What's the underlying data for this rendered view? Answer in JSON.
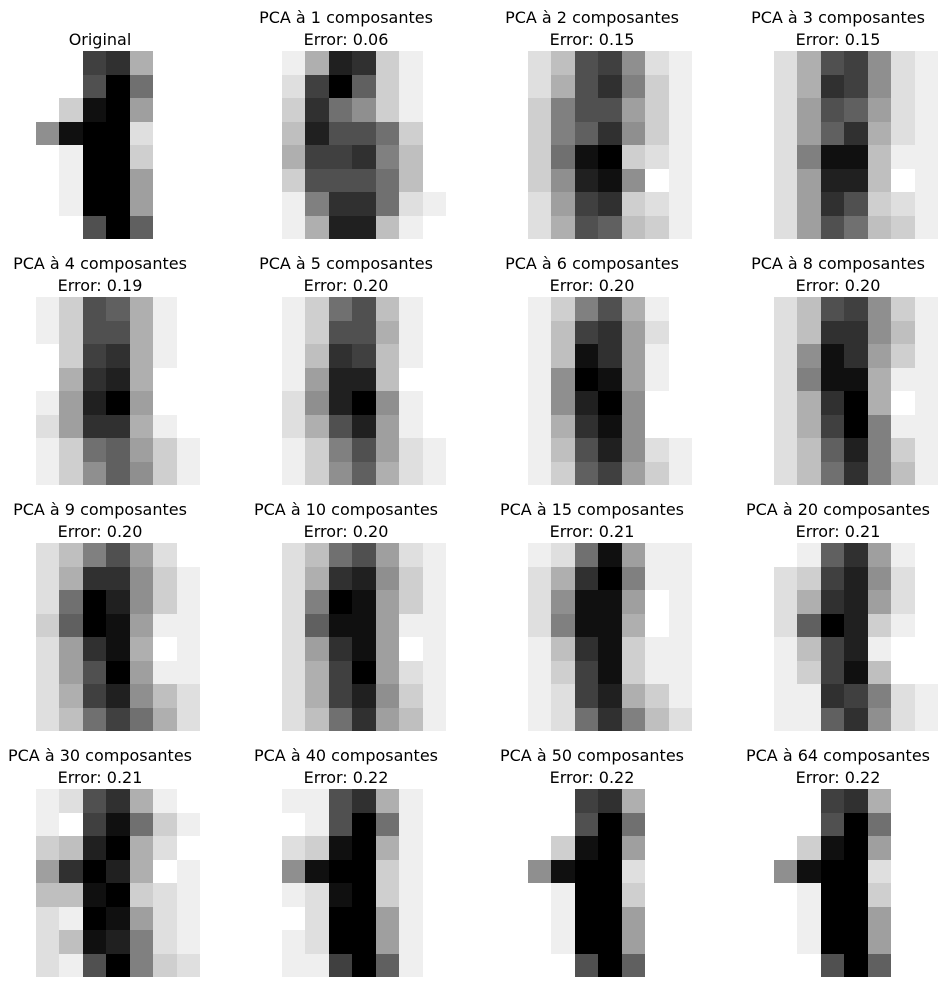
{
  "chart_data": [
    {
      "type": "heatmap",
      "title": "Original",
      "subtitle": "",
      "colormap": "gray_r",
      "pixels": [
        [
          0,
          0,
          0,
          12,
          13,
          5,
          0,
          0
        ],
        [
          0,
          0,
          0,
          11,
          16,
          9,
          0,
          0
        ],
        [
          0,
          0,
          3,
          15,
          16,
          6,
          0,
          0
        ],
        [
          0,
          7,
          15,
          16,
          16,
          2,
          0,
          0
        ],
        [
          0,
          0,
          1,
          16,
          16,
          3,
          0,
          0
        ],
        [
          0,
          0,
          1,
          16,
          16,
          6,
          0,
          0
        ],
        [
          0,
          0,
          1,
          16,
          16,
          6,
          0,
          0
        ],
        [
          0,
          0,
          0,
          11,
          16,
          10,
          0,
          0
        ]
      ]
    },
    {
      "type": "heatmap",
      "title": "PCA à 1 composantes",
      "subtitle": "Error: 0.06",
      "colormap": "gray_r",
      "pixels": [
        [
          0,
          1,
          5,
          14,
          13,
          3,
          1,
          0
        ],
        [
          0,
          2,
          12,
          16,
          10,
          3,
          1,
          0
        ],
        [
          0,
          3,
          13,
          9,
          7,
          3,
          1,
          0
        ],
        [
          0,
          4,
          14,
          11,
          11,
          9,
          3,
          0
        ],
        [
          0,
          5,
          12,
          12,
          13,
          8,
          4,
          0
        ],
        [
          0,
          3,
          11,
          11,
          11,
          9,
          4,
          0
        ],
        [
          0,
          1,
          8,
          13,
          13,
          9,
          2,
          1
        ],
        [
          0,
          1,
          5,
          14,
          14,
          4,
          1,
          0
        ]
      ]
    },
    {
      "type": "heatmap",
      "title": "PCA à 2 composantes",
      "subtitle": "Error: 0.15",
      "colormap": "gray_r",
      "pixels": [
        [
          0,
          2,
          4,
          11,
          12,
          7,
          2,
          1
        ],
        [
          0,
          2,
          5,
          11,
          13,
          8,
          3,
          1
        ],
        [
          0,
          3,
          8,
          11,
          11,
          6,
          3,
          1
        ],
        [
          0,
          3,
          8,
          10,
          13,
          7,
          3,
          1
        ],
        [
          0,
          3,
          9,
          15,
          16,
          3,
          2,
          1
        ],
        [
          0,
          3,
          7,
          14,
          15,
          7,
          0,
          1
        ],
        [
          0,
          2,
          6,
          12,
          13,
          3,
          2,
          1
        ],
        [
          0,
          2,
          5,
          11,
          10,
          4,
          3,
          1
        ]
      ]
    },
    {
      "type": "heatmap",
      "title": "PCA à 3 composantes",
      "subtitle": "Error: 0.15",
      "colormap": "gray_r",
      "pixels": [
        [
          0,
          2,
          5,
          11,
          12,
          7,
          2,
          1
        ],
        [
          0,
          2,
          5,
          13,
          12,
          7,
          2,
          1
        ],
        [
          0,
          2,
          6,
          11,
          10,
          6,
          2,
          1
        ],
        [
          0,
          2,
          6,
          10,
          13,
          5,
          2,
          1
        ],
        [
          0,
          2,
          8,
          15,
          15,
          4,
          1,
          1
        ],
        [
          0,
          2,
          6,
          14,
          14,
          4,
          0,
          1
        ],
        [
          0,
          2,
          6,
          13,
          11,
          3,
          2,
          1
        ],
        [
          0,
          2,
          6,
          11,
          9,
          4,
          3,
          1
        ]
      ]
    },
    {
      "type": "heatmap",
      "title": "PCA à 4 composantes",
      "subtitle": "Error: 0.19",
      "colormap": "gray_r",
      "pixels": [
        [
          0,
          1,
          3,
          11,
          10,
          5,
          1,
          0
        ],
        [
          0,
          1,
          3,
          11,
          11,
          5,
          1,
          0
        ],
        [
          0,
          0,
          3,
          12,
          13,
          5,
          1,
          0
        ],
        [
          0,
          0,
          5,
          13,
          14,
          5,
          0,
          0
        ],
        [
          0,
          1,
          6,
          14,
          16,
          6,
          0,
          0
        ],
        [
          0,
          2,
          6,
          13,
          13,
          5,
          1,
          0
        ],
        [
          0,
          1,
          3,
          9,
          10,
          6,
          3,
          1
        ],
        [
          0,
          1,
          3,
          7,
          10,
          7,
          3,
          1
        ]
      ]
    },
    {
      "type": "heatmap",
      "title": "PCA à 5 composantes",
      "subtitle": "Error: 0.20",
      "colormap": "gray_r",
      "pixels": [
        [
          0,
          1,
          3,
          9,
          11,
          4,
          1,
          0
        ],
        [
          0,
          1,
          3,
          11,
          11,
          5,
          1,
          0
        ],
        [
          0,
          1,
          4,
          13,
          12,
          4,
          1,
          0
        ],
        [
          0,
          1,
          6,
          14,
          14,
          4,
          0,
          0
        ],
        [
          0,
          2,
          7,
          14,
          16,
          7,
          1,
          0
        ],
        [
          0,
          2,
          5,
          11,
          14,
          6,
          1,
          0
        ],
        [
          0,
          1,
          3,
          8,
          11,
          6,
          2,
          1
        ],
        [
          0,
          1,
          3,
          7,
          10,
          5,
          2,
          1
        ]
      ]
    },
    {
      "type": "heatmap",
      "title": "PCA à 6 composantes",
      "subtitle": "Error: 0.20",
      "colormap": "gray_r",
      "pixels": [
        [
          0,
          1,
          3,
          8,
          11,
          5,
          1,
          0
        ],
        [
          0,
          1,
          4,
          12,
          13,
          6,
          2,
          0
        ],
        [
          0,
          1,
          4,
          15,
          13,
          6,
          1,
          0
        ],
        [
          0,
          1,
          7,
          16,
          15,
          6,
          1,
          0
        ],
        [
          0,
          1,
          7,
          14,
          16,
          7,
          0,
          0
        ],
        [
          0,
          1,
          5,
          13,
          15,
          7,
          0,
          0
        ],
        [
          0,
          1,
          4,
          11,
          14,
          7,
          2,
          1
        ],
        [
          0,
          1,
          3,
          10,
          12,
          6,
          3,
          1
        ]
      ]
    },
    {
      "type": "heatmap",
      "title": "PCA à 8 composantes",
      "subtitle": "Error: 0.20",
      "colormap": "gray_r",
      "pixels": [
        [
          0,
          2,
          4,
          11,
          12,
          7,
          3,
          1
        ],
        [
          0,
          2,
          4,
          13,
          13,
          7,
          4,
          1
        ],
        [
          0,
          2,
          7,
          15,
          13,
          6,
          3,
          1
        ],
        [
          0,
          2,
          8,
          15,
          15,
          5,
          1,
          1
        ],
        [
          0,
          2,
          5,
          13,
          16,
          5,
          0,
          1
        ],
        [
          0,
          2,
          5,
          12,
          16,
          8,
          1,
          1
        ],
        [
          0,
          2,
          4,
          10,
          14,
          8,
          3,
          1
        ],
        [
          0,
          2,
          4,
          9,
          13,
          8,
          4,
          1
        ]
      ]
    },
    {
      "type": "heatmap",
      "title": "PCA à 9 composantes",
      "subtitle": "Error: 0.20",
      "colormap": "gray_r",
      "pixels": [
        [
          0,
          2,
          4,
          8,
          11,
          6,
          2,
          0
        ],
        [
          0,
          2,
          5,
          13,
          13,
          7,
          3,
          1
        ],
        [
          0,
          2,
          9,
          16,
          14,
          7,
          3,
          1
        ],
        [
          0,
          3,
          10,
          16,
          15,
          6,
          1,
          1
        ],
        [
          0,
          2,
          6,
          13,
          15,
          5,
          0,
          1
        ],
        [
          0,
          2,
          6,
          11,
          16,
          6,
          1,
          1
        ],
        [
          0,
          2,
          5,
          12,
          14,
          7,
          4,
          2
        ],
        [
          0,
          2,
          4,
          9,
          12,
          9,
          5,
          2
        ]
      ]
    },
    {
      "type": "heatmap",
      "title": "PCA à 10 composantes",
      "subtitle": "Error: 0.20",
      "colormap": "gray_r",
      "pixels": [
        [
          0,
          2,
          4,
          9,
          11,
          6,
          2,
          1
        ],
        [
          0,
          2,
          5,
          13,
          14,
          7,
          3,
          1
        ],
        [
          0,
          2,
          8,
          16,
          15,
          6,
          3,
          1
        ],
        [
          0,
          2,
          10,
          15,
          15,
          6,
          1,
          1
        ],
        [
          0,
          2,
          6,
          13,
          15,
          6,
          0,
          1
        ],
        [
          0,
          2,
          5,
          12,
          16,
          6,
          2,
          1
        ],
        [
          0,
          2,
          5,
          12,
          14,
          7,
          3,
          1
        ],
        [
          0,
          2,
          4,
          9,
          13,
          6,
          4,
          1
        ]
      ]
    },
    {
      "type": "heatmap",
      "title": "PCA à 15 composantes",
      "subtitle": "Error: 0.21",
      "colormap": "gray_r",
      "pixels": [
        [
          0,
          1,
          2,
          9,
          15,
          6,
          1,
          1
        ],
        [
          0,
          2,
          5,
          13,
          16,
          8,
          1,
          1
        ],
        [
          0,
          2,
          7,
          15,
          15,
          6,
          0,
          1
        ],
        [
          0,
          2,
          8,
          15,
          15,
          5,
          0,
          1
        ],
        [
          0,
          1,
          4,
          13,
          15,
          3,
          1,
          1
        ],
        [
          0,
          1,
          3,
          12,
          15,
          3,
          1,
          1
        ],
        [
          0,
          1,
          2,
          12,
          14,
          5,
          3,
          1
        ],
        [
          0,
          1,
          2,
          9,
          13,
          8,
          4,
          2
        ]
      ]
    },
    {
      "type": "heatmap",
      "title": "PCA à 20 composantes",
      "subtitle": "Error: 0.21",
      "colormap": "gray_r",
      "pixels": [
        [
          0,
          0,
          1,
          10,
          13,
          6,
          1,
          0
        ],
        [
          0,
          2,
          3,
          12,
          14,
          7,
          2,
          0
        ],
        [
          0,
          2,
          5,
          13,
          14,
          6,
          2,
          0
        ],
        [
          0,
          2,
          10,
          16,
          14,
          3,
          1,
          0
        ],
        [
          0,
          1,
          4,
          12,
          14,
          1,
          0,
          0
        ],
        [
          0,
          1,
          3,
          12,
          15,
          4,
          0,
          0
        ],
        [
          0,
          1,
          1,
          13,
          12,
          8,
          2,
          1
        ],
        [
          0,
          1,
          1,
          10,
          13,
          7,
          2,
          1
        ]
      ]
    },
    {
      "type": "heatmap",
      "title": "PCA à 30 composantes",
      "subtitle": "Error: 0.21",
      "colormap": "gray_r",
      "pixels": [
        [
          0,
          1,
          2,
          11,
          13,
          5,
          1,
          0
        ],
        [
          0,
          1,
          0,
          12,
          15,
          9,
          3,
          1
        ],
        [
          0,
          3,
          4,
          14,
          16,
          5,
          2,
          0
        ],
        [
          0,
          6,
          13,
          16,
          14,
          5,
          0,
          1
        ],
        [
          0,
          4,
          4,
          15,
          16,
          3,
          2,
          1
        ],
        [
          0,
          2,
          1,
          16,
          15,
          6,
          2,
          1
        ],
        [
          0,
          2,
          4,
          15,
          14,
          8,
          2,
          1
        ],
        [
          0,
          2,
          1,
          11,
          16,
          8,
          3,
          2
        ]
      ]
    },
    {
      "type": "heatmap",
      "title": "PCA à 40 composantes",
      "subtitle": "Error: 0.22",
      "colormap": "gray_r",
      "pixels": [
        [
          0,
          1,
          1,
          11,
          13,
          5,
          1,
          0
        ],
        [
          0,
          0,
          1,
          11,
          16,
          9,
          1,
          0
        ],
        [
          0,
          2,
          3,
          15,
          16,
          5,
          1,
          0
        ],
        [
          0,
          7,
          15,
          16,
          16,
          3,
          1,
          0
        ],
        [
          0,
          1,
          2,
          15,
          16,
          3,
          1,
          0
        ],
        [
          0,
          0,
          2,
          16,
          16,
          6,
          1,
          0
        ],
        [
          0,
          1,
          2,
          16,
          16,
          6,
          1,
          0
        ],
        [
          0,
          1,
          1,
          12,
          16,
          10,
          1,
          0
        ]
      ]
    },
    {
      "type": "heatmap",
      "title": "PCA à 50 composantes",
      "subtitle": "Error: 0.22",
      "colormap": "gray_r",
      "pixels": [
        [
          0,
          0,
          0,
          12,
          13,
          5,
          0,
          0
        ],
        [
          0,
          0,
          0,
          11,
          16,
          9,
          0,
          0
        ],
        [
          0,
          0,
          3,
          15,
          16,
          6,
          0,
          0
        ],
        [
          0,
          7,
          15,
          16,
          16,
          2,
          0,
          0
        ],
        [
          0,
          0,
          1,
          16,
          16,
          3,
          0,
          0
        ],
        [
          0,
          0,
          1,
          16,
          16,
          6,
          0,
          0
        ],
        [
          0,
          0,
          1,
          16,
          16,
          6,
          0,
          0
        ],
        [
          0,
          0,
          0,
          11,
          16,
          10,
          0,
          0
        ]
      ]
    },
    {
      "type": "heatmap",
      "title": "PCA à 64 composantes",
      "subtitle": "Error: 0.22",
      "colormap": "gray_r",
      "pixels": [
        [
          0,
          0,
          0,
          12,
          13,
          5,
          0,
          0
        ],
        [
          0,
          0,
          0,
          11,
          16,
          9,
          0,
          0
        ],
        [
          0,
          0,
          3,
          15,
          16,
          6,
          0,
          0
        ],
        [
          0,
          7,
          15,
          16,
          16,
          2,
          0,
          0
        ],
        [
          0,
          0,
          1,
          16,
          16,
          3,
          0,
          0
        ],
        [
          0,
          0,
          1,
          16,
          16,
          6,
          0,
          0
        ],
        [
          0,
          0,
          1,
          16,
          16,
          6,
          0,
          0
        ],
        [
          0,
          0,
          0,
          11,
          16,
          10,
          0,
          0
        ]
      ]
    }
  ]
}
